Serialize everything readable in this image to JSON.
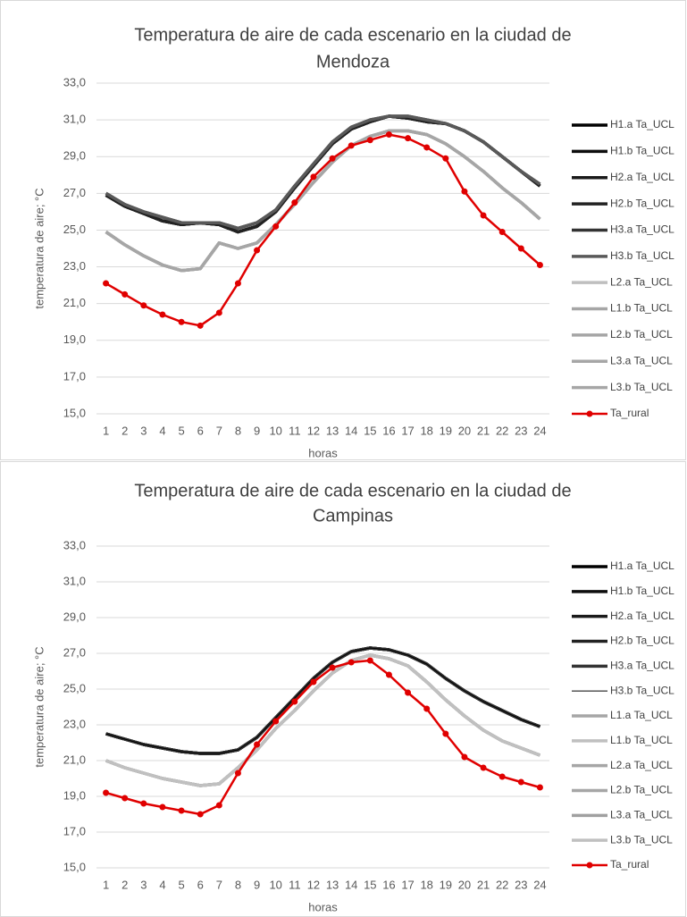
{
  "chart_data": [
    {
      "type": "line",
      "title": [
        "Temperatura de aire de cada escenario en la ciudad de",
        "Mendoza"
      ],
      "x_label": "horas",
      "y_label": "temperatura de aire; °C",
      "categories": [
        "1",
        "2",
        "3",
        "4",
        "5",
        "6",
        "7",
        "8",
        "9",
        "10",
        "11",
        "12",
        "13",
        "14",
        "15",
        "16",
        "17",
        "18",
        "19",
        "20",
        "21",
        "22",
        "23",
        "24"
      ],
      "ylim": [
        15,
        33
      ],
      "yticks": [
        {
          "value": 15,
          "label": "15,0"
        },
        {
          "value": 17,
          "label": "17,0"
        },
        {
          "value": 19,
          "label": "19,0"
        },
        {
          "value": 21,
          "label": "21,0"
        },
        {
          "value": 23,
          "label": "23,0"
        },
        {
          "value": 25,
          "label": "25,0"
        },
        {
          "value": 27,
          "label": "27,0"
        },
        {
          "value": 29,
          "label": "29,0"
        },
        {
          "value": 31,
          "label": "31,0"
        },
        {
          "value": 33,
          "label": "33,0"
        }
      ],
      "grid": true,
      "legend": "right",
      "series": [
        {
          "name": "H1.a Ta_UCL",
          "color": "#000000",
          "values": [
            26.9,
            26.3,
            25.9,
            25.5,
            25.3,
            25.4,
            25.3,
            24.9,
            25.2,
            26.0,
            27.3,
            28.5,
            29.7,
            30.5,
            30.9,
            31.2,
            31.1,
            30.9,
            30.8,
            30.4,
            29.8,
            29.0,
            28.2,
            27.4
          ]
        },
        {
          "name": "H1.b Ta_UCL",
          "color": "#0d0d0d",
          "values": [
            26.9,
            26.3,
            25.9,
            25.5,
            25.3,
            25.4,
            25.3,
            24.9,
            25.2,
            26.0,
            27.3,
            28.5,
            29.7,
            30.5,
            30.9,
            31.2,
            31.1,
            30.9,
            30.8,
            30.4,
            29.8,
            29.0,
            28.2,
            27.4
          ]
        },
        {
          "name": "H2.a Ta_UCL",
          "color": "#1a1a1a",
          "values": [
            26.9,
            26.3,
            25.9,
            25.5,
            25.3,
            25.4,
            25.3,
            24.9,
            25.2,
            26.0,
            27.3,
            28.5,
            29.7,
            30.5,
            30.9,
            31.2,
            31.1,
            30.9,
            30.8,
            30.4,
            29.8,
            29.0,
            28.2,
            27.4
          ]
        },
        {
          "name": "H2.b Ta_UCL",
          "color": "#222222",
          "values": [
            26.9,
            26.3,
            25.9,
            25.5,
            25.3,
            25.4,
            25.3,
            24.9,
            25.2,
            26.0,
            27.3,
            28.5,
            29.7,
            30.5,
            30.9,
            31.2,
            31.1,
            30.9,
            30.8,
            30.4,
            29.8,
            29.0,
            28.2,
            27.4
          ]
        },
        {
          "name": "H3.a Ta_UCL",
          "color": "#333333",
          "values": [
            27.0,
            26.4,
            26.0,
            25.7,
            25.4,
            25.4,
            25.4,
            25.1,
            25.4,
            26.1,
            27.4,
            28.6,
            29.8,
            30.6,
            31.0,
            31.2,
            31.2,
            31.0,
            30.8,
            30.4,
            29.8,
            29.0,
            28.2,
            27.5
          ]
        },
        {
          "name": "H3.b  Ta_UCL",
          "color": "#595959",
          "values": [
            27.0,
            26.4,
            26.0,
            25.7,
            25.4,
            25.4,
            25.4,
            25.1,
            25.4,
            26.1,
            27.4,
            28.6,
            29.8,
            30.6,
            31.0,
            31.2,
            31.2,
            31.0,
            30.8,
            30.4,
            29.8,
            29.0,
            28.2,
            27.5
          ]
        },
        {
          "name": "L2.a Ta_UCL",
          "color": "#bfbfbf",
          "values": [
            24.9,
            24.2,
            23.6,
            23.1,
            22.8,
            22.9,
            24.3,
            24.0,
            24.3,
            25.3,
            26.4,
            27.6,
            28.7,
            29.6,
            30.1,
            30.4,
            30.4,
            30.2,
            29.7,
            29.0,
            28.2,
            27.3,
            26.5,
            25.6
          ]
        },
        {
          "name": "L1.b Ta_UCL",
          "color": "#a6a6a6",
          "values": [
            24.9,
            24.2,
            23.6,
            23.1,
            22.8,
            22.9,
            24.3,
            24.0,
            24.3,
            25.3,
            26.4,
            27.6,
            28.7,
            29.6,
            30.1,
            30.4,
            30.4,
            30.2,
            29.7,
            29.0,
            28.2,
            27.3,
            26.5,
            25.6
          ]
        },
        {
          "name": "L2.b Ta_UCL",
          "color": "#a6a6a6",
          "values": [
            24.9,
            24.2,
            23.6,
            23.1,
            22.8,
            22.9,
            24.3,
            24.0,
            24.3,
            25.3,
            26.4,
            27.6,
            28.7,
            29.6,
            30.1,
            30.4,
            30.4,
            30.2,
            29.7,
            29.0,
            28.2,
            27.3,
            26.5,
            25.6
          ]
        },
        {
          "name": "L3.a Ta_UCL",
          "color": "#a6a6a6",
          "values": [
            24.9,
            24.2,
            23.6,
            23.1,
            22.8,
            22.9,
            24.3,
            24.0,
            24.3,
            25.3,
            26.4,
            27.6,
            28.7,
            29.6,
            30.1,
            30.4,
            30.4,
            30.2,
            29.7,
            29.0,
            28.2,
            27.3,
            26.5,
            25.6
          ]
        },
        {
          "name": "L3.b Ta_UCL",
          "color": "#a6a6a6",
          "values": [
            24.9,
            24.2,
            23.6,
            23.1,
            22.8,
            22.9,
            24.3,
            24.0,
            24.3,
            25.3,
            26.4,
            27.6,
            28.7,
            29.6,
            30.1,
            30.4,
            30.4,
            30.2,
            29.7,
            29.0,
            28.2,
            27.3,
            26.5,
            25.6
          ]
        },
        {
          "name": "Ta_rural",
          "color": "#e00000",
          "markers": true,
          "values": [
            22.1,
            21.5,
            20.9,
            20.4,
            20.0,
            19.8,
            20.5,
            22.1,
            23.9,
            25.2,
            26.5,
            27.9,
            28.9,
            29.6,
            29.9,
            30.2,
            30.0,
            29.5,
            28.9,
            27.1,
            25.8,
            24.9,
            24.0,
            23.1
          ]
        }
      ]
    },
    {
      "type": "line",
      "title": [
        "Temperatura de aire de cada escenario en la ciudad de",
        "Campinas"
      ],
      "x_label": "horas",
      "y_label": "temperatura de aire; °C",
      "categories": [
        "1",
        "2",
        "3",
        "4",
        "5",
        "6",
        "7",
        "8",
        "9",
        "10",
        "11",
        "12",
        "13",
        "14",
        "15",
        "16",
        "17",
        "18",
        "19",
        "20",
        "21",
        "22",
        "23",
        "24"
      ],
      "ylim": [
        15,
        33
      ],
      "yticks": [
        {
          "value": 15,
          "label": "15,0"
        },
        {
          "value": 17,
          "label": "17,0"
        },
        {
          "value": 19,
          "label": "19,0"
        },
        {
          "value": 21,
          "label": "21,0"
        },
        {
          "value": 23,
          "label": "23,0"
        },
        {
          "value": 25,
          "label": "25,0"
        },
        {
          "value": 27,
          "label": "27,0"
        },
        {
          "value": 29,
          "label": "29,0"
        },
        {
          "value": 31,
          "label": "31,0"
        },
        {
          "value": 33,
          "label": "33,0"
        }
      ],
      "grid": true,
      "legend": "right",
      "series": [
        {
          "name": "H1.a Ta_UCL",
          "color": "#000000",
          "values": [
            22.5,
            22.2,
            21.9,
            21.7,
            21.5,
            21.4,
            21.4,
            21.6,
            22.3,
            23.4,
            24.5,
            25.6,
            26.5,
            27.1,
            27.3,
            27.2,
            26.9,
            26.4,
            25.6,
            24.9,
            24.3,
            23.8,
            23.3,
            22.9
          ]
        },
        {
          "name": "H1.b Ta_UCL",
          "color": "#0d0d0d",
          "values": [
            22.5,
            22.2,
            21.9,
            21.7,
            21.5,
            21.4,
            21.4,
            21.6,
            22.3,
            23.4,
            24.5,
            25.6,
            26.5,
            27.1,
            27.3,
            27.2,
            26.9,
            26.4,
            25.6,
            24.9,
            24.3,
            23.8,
            23.3,
            22.9
          ]
        },
        {
          "name": "H2.a Ta_UCL",
          "color": "#1a1a1a",
          "values": [
            22.5,
            22.2,
            21.9,
            21.7,
            21.5,
            21.4,
            21.4,
            21.6,
            22.3,
            23.4,
            24.5,
            25.6,
            26.5,
            27.1,
            27.3,
            27.2,
            26.9,
            26.4,
            25.6,
            24.9,
            24.3,
            23.8,
            23.3,
            22.9
          ]
        },
        {
          "name": "H2.b Ta_UCL",
          "color": "#222222",
          "values": [
            22.5,
            22.2,
            21.9,
            21.7,
            21.5,
            21.4,
            21.4,
            21.6,
            22.3,
            23.4,
            24.5,
            25.6,
            26.5,
            27.1,
            27.3,
            27.2,
            26.9,
            26.4,
            25.6,
            24.9,
            24.3,
            23.8,
            23.3,
            22.9
          ]
        },
        {
          "name": "H3.a Ta_UCL",
          "color": "#333333",
          "values": [
            22.5,
            22.2,
            21.9,
            21.7,
            21.5,
            21.4,
            21.4,
            21.6,
            22.3,
            23.4,
            24.5,
            25.6,
            26.5,
            27.1,
            27.3,
            27.2,
            26.9,
            26.4,
            25.6,
            24.9,
            24.3,
            23.8,
            23.3,
            22.9
          ]
        },
        {
          "name": "H3.b Ta_UCL",
          "color": "#000000",
          "thin": true,
          "values": [
            22.5,
            22.2,
            21.9,
            21.7,
            21.5,
            21.4,
            21.4,
            21.6,
            22.3,
            23.4,
            24.5,
            25.6,
            26.5,
            27.1,
            27.3,
            27.2,
            26.9,
            26.4,
            25.6,
            24.9,
            24.3,
            23.8,
            23.3,
            22.9
          ]
        },
        {
          "name": "L1.a Ta_UCL",
          "color": "#a6a6a6",
          "values": [
            21.0,
            20.6,
            20.3,
            20.0,
            19.8,
            19.6,
            19.7,
            20.6,
            21.6,
            22.8,
            23.8,
            24.9,
            25.9,
            26.6,
            26.9,
            26.7,
            26.3,
            25.4,
            24.4,
            23.5,
            22.7,
            22.1,
            21.7,
            21.3
          ]
        },
        {
          "name": "L1.b Ta_UCL",
          "color": "#bfbfbf",
          "values": [
            21.0,
            20.6,
            20.3,
            20.0,
            19.8,
            19.6,
            19.7,
            20.6,
            21.6,
            22.8,
            23.8,
            24.9,
            25.9,
            26.6,
            26.9,
            26.7,
            26.3,
            25.4,
            24.4,
            23.5,
            22.7,
            22.1,
            21.7,
            21.3
          ]
        },
        {
          "name": "L2.a Ta_UCL",
          "color": "#a6a6a6",
          "values": [
            21.0,
            20.6,
            20.3,
            20.0,
            19.8,
            19.6,
            19.7,
            20.6,
            21.6,
            22.8,
            23.8,
            24.9,
            25.9,
            26.6,
            26.9,
            26.7,
            26.3,
            25.4,
            24.4,
            23.5,
            22.7,
            22.1,
            21.7,
            21.3
          ]
        },
        {
          "name": "L2.b Ta_UCL",
          "color": "#a6a6a6",
          "values": [
            21.0,
            20.6,
            20.3,
            20.0,
            19.8,
            19.6,
            19.7,
            20.6,
            21.6,
            22.8,
            23.8,
            24.9,
            25.9,
            26.6,
            26.9,
            26.7,
            26.3,
            25.4,
            24.4,
            23.5,
            22.7,
            22.1,
            21.7,
            21.3
          ]
        },
        {
          "name": "L3.a Ta_UCL",
          "color": "#a0a0a0",
          "values": [
            21.0,
            20.6,
            20.3,
            20.0,
            19.8,
            19.6,
            19.7,
            20.6,
            21.6,
            22.8,
            23.8,
            24.9,
            25.9,
            26.6,
            26.9,
            26.7,
            26.3,
            25.4,
            24.4,
            23.5,
            22.7,
            22.1,
            21.7,
            21.3
          ]
        },
        {
          "name": "L3.b Ta_UCL",
          "color": "#c0c0c0",
          "values": [
            21.0,
            20.6,
            20.3,
            20.0,
            19.8,
            19.6,
            19.7,
            20.6,
            21.6,
            22.8,
            23.8,
            24.9,
            25.9,
            26.6,
            26.9,
            26.7,
            26.3,
            25.4,
            24.4,
            23.5,
            22.7,
            22.1,
            21.7,
            21.3
          ]
        },
        {
          "name": "Ta_rural",
          "color": "#e00000",
          "markers": true,
          "values": [
            19.2,
            18.9,
            18.6,
            18.4,
            18.2,
            18.0,
            18.5,
            20.3,
            21.9,
            23.2,
            24.3,
            25.4,
            26.2,
            26.5,
            26.6,
            25.8,
            24.8,
            23.9,
            22.5,
            21.2,
            20.6,
            20.1,
            19.8,
            19.5
          ]
        }
      ]
    }
  ]
}
